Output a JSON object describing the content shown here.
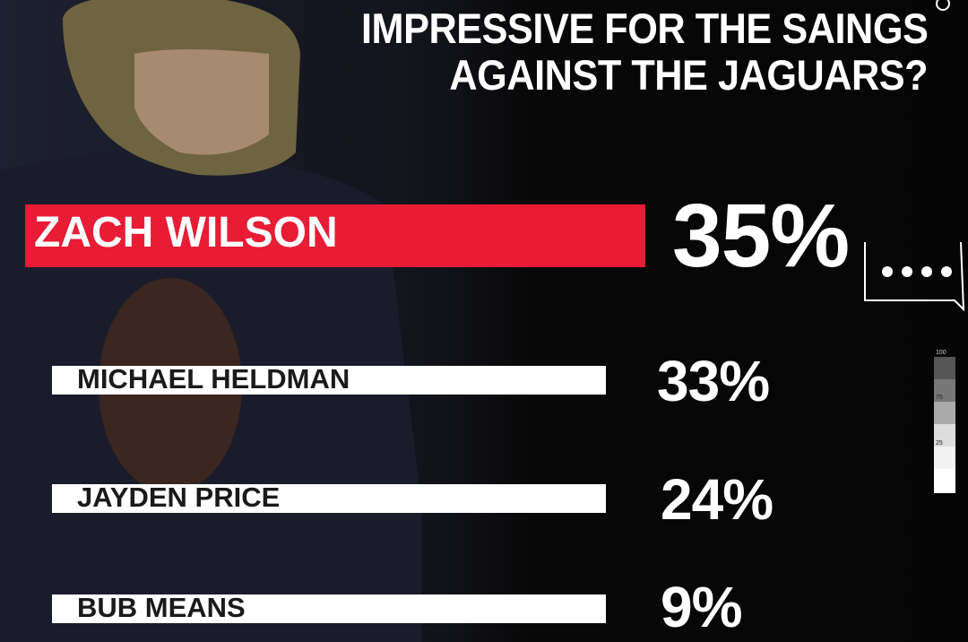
{
  "title": {
    "line1": "IMPRESSIVE FOR THE SAINGS",
    "line2": "AGAINST THE JAGUARS?"
  },
  "poll": {
    "rows": [
      {
        "name": "ZACH WILSON",
        "value": "35%"
      },
      {
        "name": "MICHAEL HELDMAN",
        "value": "33%"
      },
      {
        "name": "JAYDEN PRICE",
        "value": "24%"
      },
      {
        "name": "BUB MEANS",
        "value": "9%"
      }
    ]
  },
  "scale": {
    "labels": [
      "100",
      "75",
      "25"
    ]
  }
}
